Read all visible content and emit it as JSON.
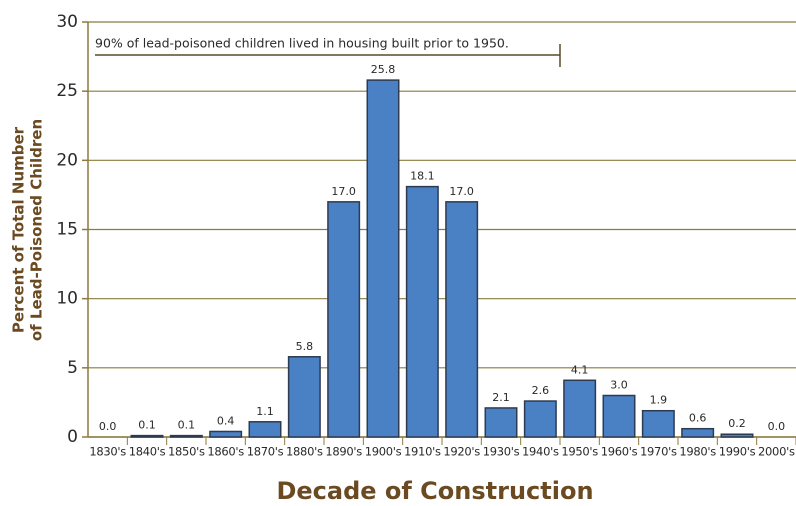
{
  "chart_data": {
    "type": "bar",
    "categories": [
      "1830's",
      "1840's",
      "1850's",
      "1860's",
      "1870's",
      "1880's",
      "1890's",
      "1900's",
      "1910's",
      "1920's",
      "1930's",
      "1940's",
      "1950's",
      "1960's",
      "1970's",
      "1980's",
      "1990's",
      "2000's"
    ],
    "values": [
      0.0,
      0.1,
      0.1,
      0.4,
      1.1,
      5.8,
      17.0,
      25.8,
      18.1,
      17.0,
      2.1,
      2.6,
      4.1,
      3.0,
      1.9,
      0.6,
      0.2,
      0.0
    ],
    "value_labels": [
      "0.0",
      "0.1",
      "0.1",
      "0.4",
      "1.1",
      "5.8",
      "17.0",
      "25.8",
      "18.1",
      "17.0",
      "2.1",
      "2.6",
      "4.1",
      "3.0",
      "1.9",
      "0.6",
      "0.2",
      "0.0"
    ],
    "color": "#4a80c4",
    "ylim": [
      0,
      30
    ],
    "yticks": [
      0,
      5,
      10,
      15,
      20,
      25,
      30
    ],
    "grid": true,
    "ylabel": [
      "Percent of Total Number",
      "of Lead-Poisoned Children"
    ],
    "xlabel": "Decade of Construction",
    "annotation": "90% of lead-poisoned children lived in housing built prior to 1950."
  }
}
